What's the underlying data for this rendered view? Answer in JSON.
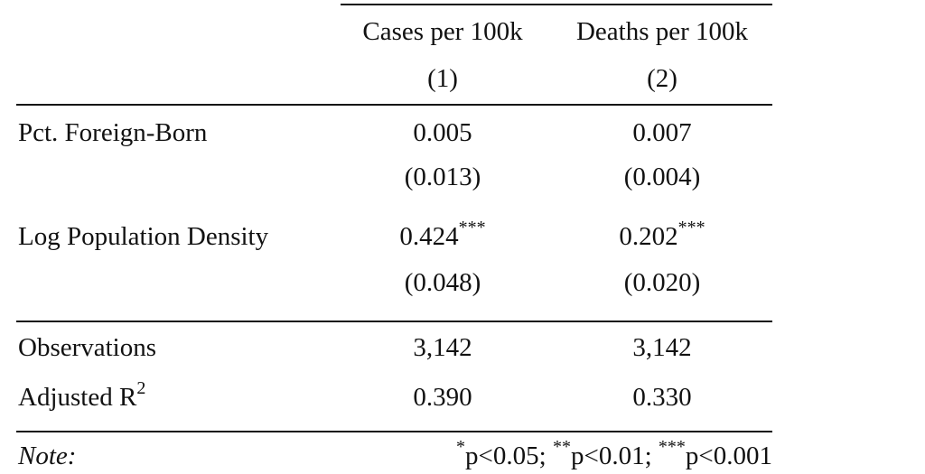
{
  "table": {
    "column_headers": [
      "Cases per 100k",
      "Deaths per 100k"
    ],
    "column_numbers": [
      "(1)",
      "(2)"
    ],
    "rows": [
      {
        "label": "Pct. Foreign-Born",
        "estimates": [
          "0.005",
          "0.007"
        ],
        "std_errors": [
          "(0.013)",
          "(0.004)"
        ]
      },
      {
        "label": "Log Population Density",
        "estimates": [
          "0.424",
          "0.202"
        ],
        "stars": [
          "***",
          "***"
        ],
        "std_errors": [
          "(0.048)",
          "(0.020)"
        ]
      }
    ],
    "stats": [
      {
        "label": "Observations",
        "values": [
          "3,142",
          "3,142"
        ]
      },
      {
        "label": "Adjusted R",
        "label_superscript": "2",
        "values": [
          "0.390",
          "0.330"
        ]
      }
    ],
    "note": {
      "label": "Note:",
      "parts": [
        {
          "sup": "*",
          "text": "p<0.05; "
        },
        {
          "sup": "**",
          "text": "p<0.01; "
        },
        {
          "sup": "***",
          "text": "p<0.001"
        }
      ]
    }
  }
}
